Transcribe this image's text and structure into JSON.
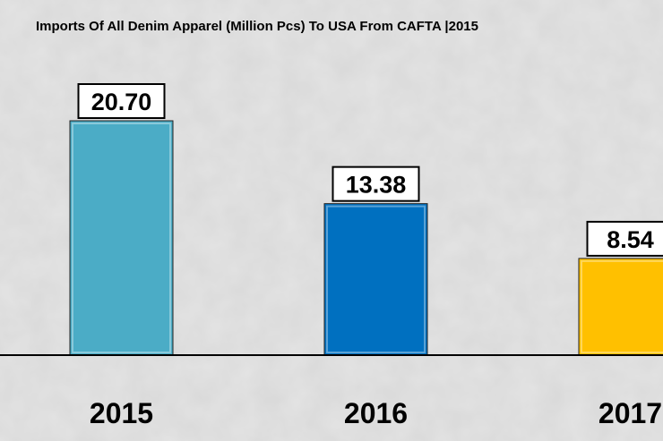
{
  "chart_data": {
    "type": "bar",
    "title": "Imports Of All Denim Apparel (Million Pcs) To USA From CAFTA |2015",
    "categories": [
      "2015",
      "2016",
      "2017"
    ],
    "values": [
      20.7,
      13.38,
      8.54
    ],
    "value_labels": [
      "20.70",
      "13.38",
      "8.54"
    ],
    "colors": [
      "#4bacc6",
      "#0070c0",
      "#ffc000"
    ],
    "xlabel": "",
    "ylabel": "",
    "ylim": [
      0,
      20.7
    ],
    "grid": false,
    "legend": "none"
  }
}
